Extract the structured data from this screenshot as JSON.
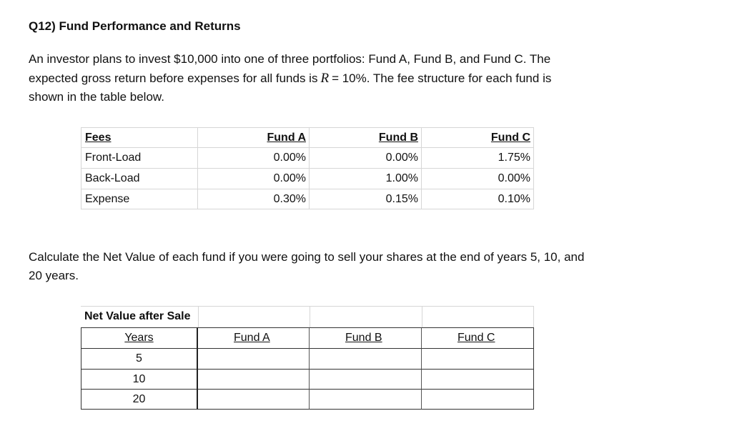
{
  "title": "Q12) Fund Performance and Returns",
  "intro": {
    "line1": "An investor plans to invest $10,000 into one of three portfolios: Fund A, Fund B, and Fund C. The",
    "line2_start": "expected gross return before expenses for all funds is",
    "variable": "R",
    "line2_end": "= 10%. The fee structure for each fund is",
    "line3": "shown in the table below."
  },
  "fees_table": {
    "header": [
      "Fees",
      "Fund A",
      "Fund B",
      "Fund C"
    ],
    "rows": [
      [
        "Front-Load",
        "0.00%",
        "0.00%",
        "1.75%"
      ],
      [
        "Back-Load",
        "0.00%",
        "1.00%",
        "0.00%"
      ],
      [
        "Expense",
        "0.30%",
        "0.15%",
        "0.10%"
      ]
    ]
  },
  "question": {
    "line1": "Calculate the Net Value of each fund if you were going to sell your shares at the end of years 5, 10, and",
    "line2": "20 years."
  },
  "net_value_table": {
    "caption": "Net Value after Sale",
    "header": [
      "Years",
      "Fund A",
      "Fund B",
      "Fund C"
    ],
    "years": [
      "5",
      "10",
      "20"
    ]
  }
}
